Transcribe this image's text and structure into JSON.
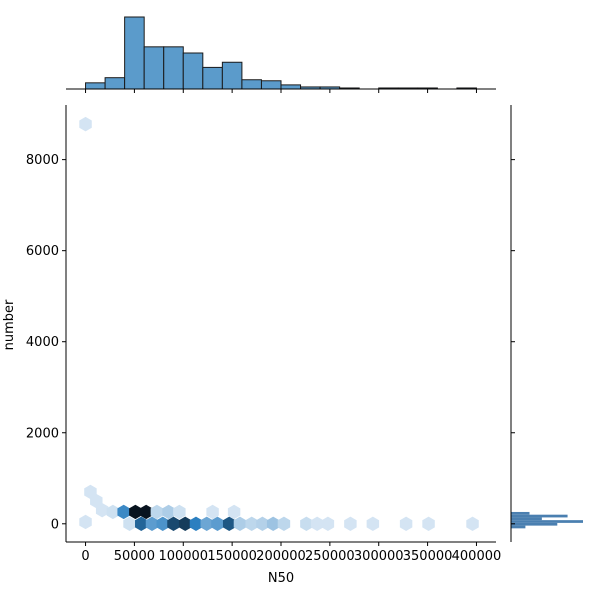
{
  "chart_data": {
    "type": "hexbin-joint",
    "xlabel": "N50",
    "ylabel": "number",
    "xlim": [
      -20000,
      420000
    ],
    "ylim": [
      -400,
      9200
    ],
    "x_ticks": [
      0,
      50000,
      100000,
      150000,
      200000,
      250000,
      300000,
      350000,
      400000
    ],
    "x_tick_labels": [
      "0",
      "50000",
      "100000",
      "150000",
      "200000",
      "250000",
      "300000",
      "350000",
      "400000"
    ],
    "y_ticks": [
      0,
      2000,
      4000,
      6000,
      8000
    ],
    "y_tick_labels": [
      "0",
      "2000",
      "4000",
      "6000",
      "8000"
    ],
    "hexbins": [
      {
        "x": 0,
        "y": 8780,
        "density": 0.08
      },
      {
        "x": 5000,
        "y": 700,
        "density": 0.08
      },
      {
        "x": 11000,
        "y": 500,
        "density": 0.08
      },
      {
        "x": 0,
        "y": 40,
        "density": 0.08
      },
      {
        "x": 17000,
        "y": 300,
        "density": 0.08
      },
      {
        "x": 28000,
        "y": 260,
        "density": 0.1
      },
      {
        "x": 39000,
        "y": 260,
        "density": 0.55
      },
      {
        "x": 51000,
        "y": 260,
        "density": 1.0
      },
      {
        "x": 62000,
        "y": 260,
        "density": 1.0
      },
      {
        "x": 73000,
        "y": 260,
        "density": 0.15
      },
      {
        "x": 85000,
        "y": 260,
        "density": 0.2
      },
      {
        "x": 96000,
        "y": 260,
        "density": 0.1
      },
      {
        "x": 130000,
        "y": 260,
        "density": 0.08
      },
      {
        "x": 152000,
        "y": 260,
        "density": 0.08
      },
      {
        "x": 45000,
        "y": 0,
        "density": 0.1
      },
      {
        "x": 57000,
        "y": 0,
        "density": 0.7
      },
      {
        "x": 68000,
        "y": 0,
        "density": 0.45
      },
      {
        "x": 79000,
        "y": 0,
        "density": 0.5
      },
      {
        "x": 90000,
        "y": 0,
        "density": 0.8
      },
      {
        "x": 102000,
        "y": 0,
        "density": 0.85
      },
      {
        "x": 113000,
        "y": 0,
        "density": 0.6
      },
      {
        "x": 124000,
        "y": 0,
        "density": 0.4
      },
      {
        "x": 135000,
        "y": 0,
        "density": 0.45
      },
      {
        "x": 147000,
        "y": 0,
        "density": 0.75
      },
      {
        "x": 158000,
        "y": 0,
        "density": 0.2
      },
      {
        "x": 170000,
        "y": 0,
        "density": 0.15
      },
      {
        "x": 181000,
        "y": 0,
        "density": 0.18
      },
      {
        "x": 192000,
        "y": 0,
        "density": 0.25
      },
      {
        "x": 203000,
        "y": 0,
        "density": 0.15
      },
      {
        "x": 226000,
        "y": 0,
        "density": 0.12
      },
      {
        "x": 237000,
        "y": 0,
        "density": 0.08
      },
      {
        "x": 248000,
        "y": 0,
        "density": 0.08
      },
      {
        "x": 271000,
        "y": 0,
        "density": 0.08
      },
      {
        "x": 294000,
        "y": 0,
        "density": 0.08
      },
      {
        "x": 328000,
        "y": 0,
        "density": 0.08
      },
      {
        "x": 351000,
        "y": 0,
        "density": 0.08
      },
      {
        "x": 396000,
        "y": 0,
        "density": 0.08
      }
    ],
    "top_histogram": {
      "bin_edges": [
        0,
        20000,
        40000,
        60000,
        80000,
        100000,
        120000,
        140000,
        160000,
        180000,
        200000,
        220000,
        240000,
        260000,
        280000,
        300000,
        320000,
        340000,
        360000,
        380000,
        400000
      ],
      "counts": [
        6,
        11,
        70,
        41,
        41,
        35,
        21,
        26,
        9,
        8,
        4,
        2,
        2,
        1,
        0,
        1,
        1,
        1,
        0,
        1
      ]
    },
    "right_histogram": {
      "bins": [
        {
          "y_from": -100,
          "y_to": -40,
          "count": 14
        },
        {
          "y_from": -40,
          "y_to": 20,
          "count": 45
        },
        {
          "y_from": 20,
          "y_to": 80,
          "count": 70
        },
        {
          "y_from": 80,
          "y_to": 140,
          "count": 30
        },
        {
          "y_from": 140,
          "y_to": 200,
          "count": 55
        },
        {
          "y_from": 200,
          "y_to": 260,
          "count": 18
        }
      ]
    },
    "colors": {
      "hex_low": "#eef4fb",
      "hex_mid": "#2b7fc0",
      "hex_high": "#08131f",
      "hist_fill": "#5b9bcb",
      "hist_edge": "#1a1a1a",
      "right_hist_fill": "#4a7fb0"
    }
  }
}
